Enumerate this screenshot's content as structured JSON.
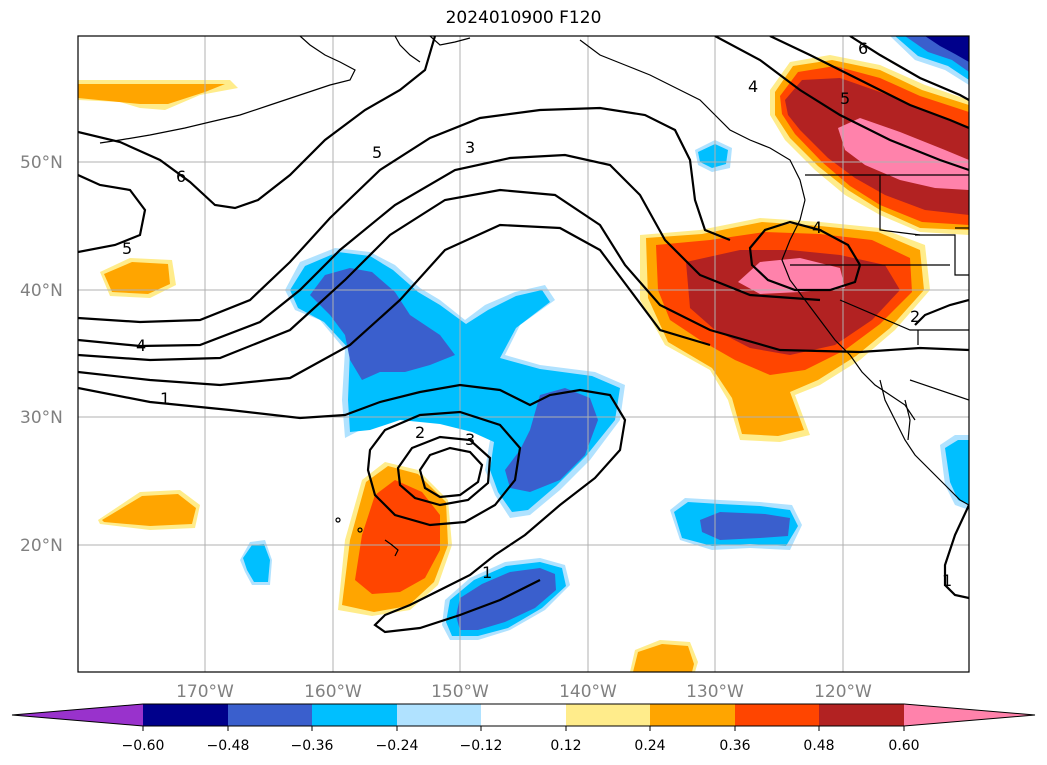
{
  "title": "2024010900 F120",
  "map": {
    "lat_labels": [
      "50°N",
      "40°N",
      "30°N",
      "20°N"
    ],
    "lon_labels": [
      "170°W",
      "160°W",
      "150°W",
      "140°W",
      "130°W",
      "120°W"
    ],
    "contour_labels": [
      "6",
      "5",
      "4",
      "1",
      "5",
      "3",
      "2",
      "3",
      "1",
      "4",
      "5",
      "6",
      "4",
      "2",
      "1"
    ]
  },
  "colorbar": {
    "ticks": [
      "−0.60",
      "−0.48",
      "−0.36",
      "−0.24",
      "−0.12",
      "0.12",
      "0.24",
      "0.36",
      "0.48",
      "0.60"
    ],
    "colors": [
      "#9932cc",
      "#00008b",
      "#3a5fcd",
      "#00bfff",
      "#b0e2ff",
      "#ffffff",
      "#ffec8b",
      "#ffa500",
      "#ff4500",
      "#b22222",
      "#ff82ab"
    ]
  }
}
